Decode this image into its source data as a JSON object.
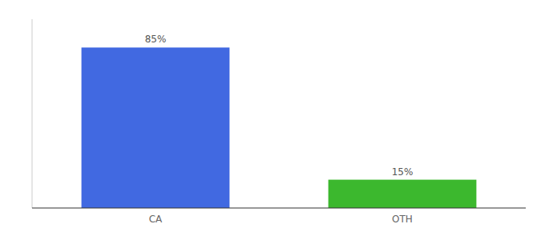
{
  "chart_data": {
    "type": "bar",
    "categories": [
      "CA",
      "OTH"
    ],
    "values": [
      85,
      15
    ],
    "value_labels": [
      "85%",
      "15%"
    ],
    "colors": [
      "#4169e1",
      "#3cb82e"
    ],
    "ylim": [
      0,
      100
    ],
    "data_labels": true,
    "tick_labels": "x"
  }
}
